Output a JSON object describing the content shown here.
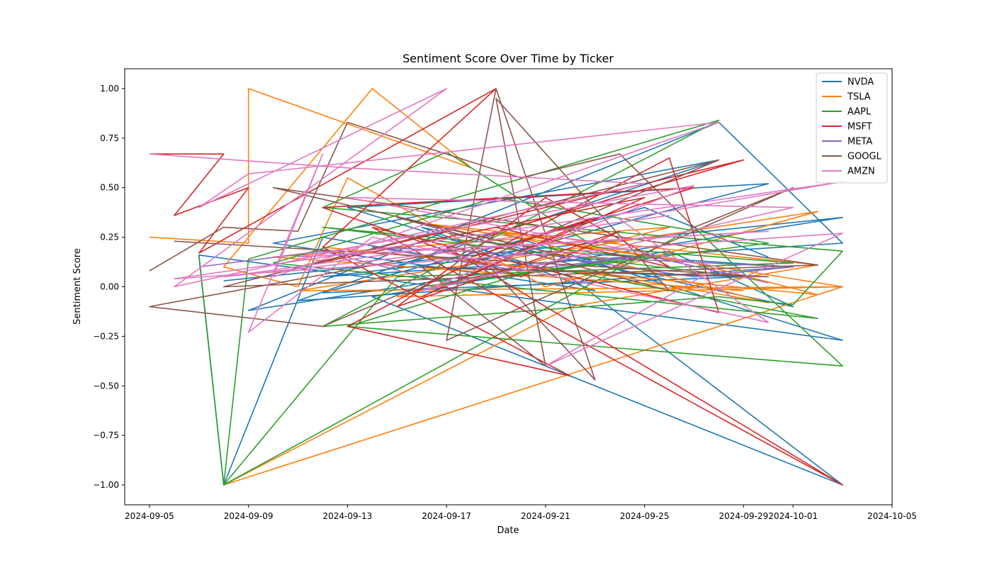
{
  "chart_data": {
    "type": "line",
    "title": "Sentiment Score Over Time by Ticker",
    "xlabel": "Date",
    "ylabel": "Sentiment Score",
    "xlim": [
      "2024-09-04",
      "2024-10-05"
    ],
    "ylim": [
      -1.1,
      1.1
    ],
    "x_ticks": [
      "2024-09-05",
      "2024-09-09",
      "2024-09-13",
      "2024-09-17",
      "2024-09-21",
      "2024-09-25",
      "2024-09-29",
      "2024-10-01",
      "2024-10-05"
    ],
    "y_ticks": [
      "−1.00",
      "−0.75",
      "−0.50",
      "−0.25",
      "0.00",
      "0.25",
      "0.50",
      "0.75",
      "1.00"
    ],
    "y_tick_values": [
      -1.0,
      -0.75,
      -0.5,
      -0.25,
      0.0,
      0.25,
      0.5,
      0.75,
      1.0
    ],
    "grid": false,
    "legend_position": "top-right",
    "series": [
      {
        "name": "NVDA",
        "color": "#1f77b4",
        "points": [
          [
            "2024-09-08",
            0.03
          ],
          [
            "2024-10-03",
            0.35
          ],
          [
            "2024-09-09",
            -0.12
          ],
          [
            "2024-09-28",
            0.83
          ],
          [
            "2024-10-03",
            0.22
          ],
          [
            "2024-09-12",
            0.05
          ],
          [
            "2024-09-21",
            0.18
          ],
          [
            "2024-10-01",
            0.1
          ],
          [
            "2024-09-11",
            -0.07
          ],
          [
            "2024-09-19",
            0.28
          ],
          [
            "2024-10-03",
            -0.27
          ],
          [
            "2024-09-07",
            0.16
          ],
          [
            "2024-09-08",
            -1.0
          ],
          [
            "2024-09-12",
            0.25
          ],
          [
            "2024-09-18",
            0.12
          ],
          [
            "2024-09-30",
            0.52
          ],
          [
            "2024-09-13",
            0.4
          ],
          [
            "2024-09-22",
            0.05
          ],
          [
            "2024-10-03",
            -1.0
          ],
          [
            "2024-09-14",
            -0.05
          ],
          [
            "2024-09-26",
            0.18
          ],
          [
            "2024-10-01",
            -0.1
          ],
          [
            "2024-09-16",
            0.3
          ],
          [
            "2024-09-23",
            -0.02
          ],
          [
            "2024-09-10",
            0.22
          ],
          [
            "2024-09-28",
            0.64
          ],
          [
            "2024-09-15",
            0.1
          ],
          [
            "2024-09-29",
            0.05
          ],
          [
            "2024-09-12",
            -0.03
          ],
          [
            "2024-09-25",
            0.4
          ],
          [
            "2024-09-30",
            0.15
          ]
        ]
      },
      {
        "name": "TSLA",
        "color": "#ff7f0e",
        "points": [
          [
            "2024-09-05",
            0.25
          ],
          [
            "2024-09-09",
            0.22
          ],
          [
            "2024-09-09",
            1.0
          ],
          [
            "2024-09-18",
            0.6
          ],
          [
            "2024-09-14",
            1.0
          ],
          [
            "2024-09-08",
            0.1
          ],
          [
            "2024-09-11",
            0.0
          ],
          [
            "2024-09-13",
            0.55
          ],
          [
            "2024-09-21",
            0.0
          ],
          [
            "2024-10-02",
            0.38
          ],
          [
            "2024-09-11",
            -0.02
          ],
          [
            "2024-10-03",
            0.0
          ],
          [
            "2024-09-08",
            -1.0
          ],
          [
            "2024-09-22",
            -0.1
          ],
          [
            "2024-10-02",
            0.11
          ],
          [
            "2024-09-16",
            0.32
          ],
          [
            "2024-09-27",
            0.12
          ],
          [
            "2024-10-02",
            -0.04
          ],
          [
            "2024-09-12",
            0.2
          ],
          [
            "2024-09-24",
            0.05
          ],
          [
            "2024-09-30",
            -0.08
          ],
          [
            "2024-09-19",
            0.28
          ],
          [
            "2024-10-03",
            0.0
          ],
          [
            "2024-09-15",
            -0.05
          ],
          [
            "2024-09-26",
            0.3
          ],
          [
            "2024-09-10",
            0.15
          ],
          [
            "2024-09-29",
            -0.02
          ]
        ]
      },
      {
        "name": "AAPL",
        "color": "#2ca02c",
        "points": [
          [
            "2024-09-07",
            0.15
          ],
          [
            "2024-09-08",
            -1.0
          ],
          [
            "2024-09-09",
            0.14
          ],
          [
            "2024-09-28",
            0.84
          ],
          [
            "2024-09-12",
            -0.2
          ],
          [
            "2024-09-28",
            -0.05
          ],
          [
            "2024-10-01",
            -0.09
          ],
          [
            "2024-10-03",
            0.18
          ],
          [
            "2024-09-12",
            0.4
          ],
          [
            "2024-09-17",
            0.68
          ],
          [
            "2024-09-23",
            0.2
          ],
          [
            "2024-10-01",
            0.12
          ],
          [
            "2024-09-15",
            0.05
          ],
          [
            "2024-09-08",
            -1.0
          ],
          [
            "2024-09-27",
            0.3
          ],
          [
            "2024-10-03",
            -0.4
          ],
          [
            "2024-09-13",
            -0.2
          ],
          [
            "2024-09-21",
            0.1
          ],
          [
            "2024-10-02",
            -0.16
          ],
          [
            "2024-09-10",
            0.12
          ],
          [
            "2024-09-19",
            0.45
          ],
          [
            "2024-09-30",
            0.22
          ],
          [
            "2024-09-16",
            0.0
          ],
          [
            "2024-09-25",
            0.15
          ],
          [
            "2024-09-12",
            0.3
          ],
          [
            "2024-09-29",
            0.05
          ]
        ]
      },
      {
        "name": "MSFT",
        "color": "#d62728",
        "points": [
          [
            "2024-09-05",
            0.67
          ],
          [
            "2024-09-08",
            0.67
          ],
          [
            "2024-09-06",
            0.36
          ],
          [
            "2024-09-09",
            0.5
          ],
          [
            "2024-09-07",
            0.17
          ],
          [
            "2024-09-19",
            1.0
          ],
          [
            "2024-09-12",
            0.2
          ],
          [
            "2024-09-22",
            -0.45
          ],
          [
            "2024-09-13",
            -0.2
          ],
          [
            "2024-09-26",
            0.65
          ],
          [
            "2024-09-28",
            -0.13
          ],
          [
            "2024-09-14",
            0.3
          ],
          [
            "2024-10-03",
            -1.0
          ],
          [
            "2024-09-17",
            0.2
          ],
          [
            "2024-09-29",
            0.64
          ],
          [
            "2024-09-11",
            0.1
          ],
          [
            "2024-09-25",
            0.45
          ],
          [
            "2024-09-16",
            -0.05
          ],
          [
            "2024-09-23",
            0.35
          ],
          [
            "2024-09-18",
            0.15
          ],
          [
            "2024-09-27",
            0.5
          ],
          [
            "2024-09-12",
            0.4
          ],
          [
            "2024-09-20",
            0.05
          ],
          [
            "2024-09-24",
            0.28
          ],
          [
            "2024-09-15",
            -0.1
          ],
          [
            "2024-09-21",
            0.45
          ],
          [
            "2024-09-26",
            0.1
          ],
          [
            "2024-09-19",
            0.3
          ]
        ]
      },
      {
        "name": "META",
        "color": "#9467bd",
        "points": [
          [
            "2024-09-07",
            0.1
          ],
          [
            "2024-09-12",
            0.18
          ],
          [
            "2024-09-17",
            0.02
          ],
          [
            "2024-09-22",
            0.14
          ],
          [
            "2024-09-27",
            0.05
          ],
          [
            "2024-10-01",
            0.1
          ],
          [
            "2024-09-14",
            0.2
          ],
          [
            "2024-09-20",
            0.08
          ],
          [
            "2024-09-25",
            0.16
          ],
          [
            "2024-09-30",
            0.02
          ]
        ]
      },
      {
        "name": "GOOGL",
        "color": "#8c564b",
        "points": [
          [
            "2024-09-05",
            0.08
          ],
          [
            "2024-09-08",
            0.3
          ],
          [
            "2024-09-11",
            0.28
          ],
          [
            "2024-09-13",
            0.83
          ],
          [
            "2024-09-20",
            0.55
          ],
          [
            "2024-09-24",
            0.67
          ],
          [
            "2024-09-27",
            0.3
          ],
          [
            "2024-10-01",
            0.5
          ],
          [
            "2024-09-17",
            -0.27
          ],
          [
            "2024-09-19",
            1.0
          ],
          [
            "2024-09-23",
            -0.47
          ],
          [
            "2024-09-18",
            0.2
          ],
          [
            "2024-09-05",
            -0.1
          ],
          [
            "2024-09-12",
            -0.2
          ],
          [
            "2024-09-28",
            0.64
          ],
          [
            "2024-09-08",
            0.0
          ],
          [
            "2024-10-02",
            0.11
          ],
          [
            "2024-09-10",
            0.5
          ],
          [
            "2024-09-22",
            0.15
          ],
          [
            "2024-09-15",
            0.35
          ],
          [
            "2024-09-26",
            -0.02
          ],
          [
            "2024-09-19",
            0.95
          ],
          [
            "2024-09-21",
            -0.4
          ],
          [
            "2024-09-16",
            0.1
          ],
          [
            "2024-09-30",
            0.05
          ],
          [
            "2024-09-06",
            0.23
          ]
        ]
      },
      {
        "name": "AMZN",
        "color": "#e377c2",
        "points": [
          [
            "2024-09-05",
            0.67
          ],
          [
            "2024-09-13",
            0.6
          ],
          [
            "2024-09-25",
            0.52
          ],
          [
            "2024-09-06",
            0.0
          ],
          [
            "2024-09-17",
            1.0
          ],
          [
            "2024-09-07",
            0.4
          ],
          [
            "2024-09-09",
            0.57
          ],
          [
            "2024-09-28",
            0.83
          ],
          [
            "2024-09-10",
            0.05
          ],
          [
            "2024-09-12",
            0.67
          ],
          [
            "2024-09-09",
            -0.23
          ],
          [
            "2024-09-14",
            0.25
          ],
          [
            "2024-09-30",
            -0.18
          ],
          [
            "2024-09-24",
            0.34
          ],
          [
            "2024-10-03",
            0.53
          ],
          [
            "2024-09-06",
            0.04
          ],
          [
            "2024-10-03",
            0.27
          ],
          [
            "2024-09-21",
            -0.4
          ],
          [
            "2024-09-28",
            0.1
          ],
          [
            "2024-09-13",
            0.45
          ],
          [
            "2024-10-01",
            0.4
          ],
          [
            "2024-09-16",
            -0.02
          ],
          [
            "2024-09-27",
            0.51
          ],
          [
            "2024-09-11",
            0.15
          ],
          [
            "2024-09-30",
            0.28
          ],
          [
            "2024-09-19",
            0.2
          ],
          [
            "2024-09-08",
            0.05
          ],
          [
            "2024-09-26",
            0.36
          ]
        ]
      }
    ]
  }
}
